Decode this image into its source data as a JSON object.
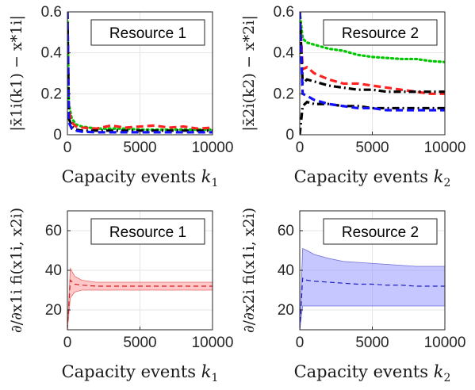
{
  "chart_data": [
    {
      "type": "line",
      "panel": "top-left",
      "legend": "Resource 1",
      "legend_placement": "top-right",
      "xlabel_text": "Capacity events ",
      "xlabel_sym": "k",
      "xlabel_sub": "1",
      "ylabel": "|x̄1i(k1) − x*1i|",
      "xlim": [
        0,
        10000
      ],
      "ylim": [
        0,
        0.6
      ],
      "xticks": [
        0,
        5000,
        10000
      ],
      "yticks": [
        0,
        0.2,
        0.4,
        0.6
      ],
      "xtick_labels": [
        "0",
        "5000",
        "10000"
      ],
      "ytick_labels": [
        "0",
        "0.2",
        "0.4",
        "0.6"
      ],
      "grid": true,
      "series": [
        {
          "color": "#00c800",
          "style": "dotted",
          "x": [
            0,
            100,
            300,
            600,
            1000,
            2000,
            3000,
            4000,
            5000,
            6000,
            7000,
            8000,
            9000,
            10000
          ],
          "y": [
            0.6,
            0.15,
            0.08,
            0.05,
            0.04,
            0.03,
            0.03,
            0.03,
            0.025,
            0.025,
            0.025,
            0.025,
            0.025,
            0.025
          ]
        },
        {
          "color": "#ff2020",
          "style": "dashed",
          "x": [
            0,
            100,
            300,
            600,
            1000,
            2000,
            3000,
            4000,
            5000,
            6000,
            7000,
            8000,
            9000,
            10000
          ],
          "y": [
            0.6,
            0.12,
            0.06,
            0.04,
            0.035,
            0.03,
            0.045,
            0.035,
            0.04,
            0.045,
            0.035,
            0.04,
            0.03,
            0.035
          ]
        },
        {
          "color": "#000000",
          "style": "dashdot",
          "x": [
            0,
            100,
            300,
            600,
            1000,
            2000,
            3000,
            4000,
            5000,
            6000,
            7000,
            8000,
            9000,
            10000
          ],
          "y": [
            0.6,
            0.08,
            0.04,
            0.025,
            0.02,
            0.02,
            0.02,
            0.02,
            0.02,
            0.02,
            0.02,
            0.02,
            0.02,
            0.02
          ]
        },
        {
          "color": "#1010ff",
          "style": "dashed",
          "x": [
            0,
            100,
            300,
            600,
            1000,
            2000,
            3000,
            4000,
            5000,
            6000,
            7000,
            8000,
            9000,
            10000
          ],
          "y": [
            0.6,
            0.06,
            0.03,
            0.02,
            0.015,
            0.012,
            0.012,
            0.012,
            0.012,
            0.012,
            0.012,
            0.012,
            0.012,
            0.012
          ]
        }
      ]
    },
    {
      "type": "line",
      "panel": "top-right",
      "legend": "Resource 2",
      "legend_placement": "top-right",
      "xlabel_text": "Capacity events ",
      "xlabel_sym": "k",
      "xlabel_sub": "2",
      "ylabel": "|x̄2i(k2) − x*2i|",
      "xlim": [
        0,
        10000
      ],
      "ylim": [
        0,
        0.6
      ],
      "xticks": [
        0,
        5000,
        10000
      ],
      "yticks": [
        0,
        0.2,
        0.4,
        0.6
      ],
      "xtick_labels": [
        "0",
        "5000",
        "10000"
      ],
      "ytick_labels": [
        "0",
        "0.2",
        "0.4",
        "0.6"
      ],
      "grid": true,
      "series": [
        {
          "color": "#00c800",
          "style": "dotted",
          "x": [
            0,
            200,
            500,
            1000,
            2000,
            3000,
            4000,
            5000,
            6000,
            7000,
            8000,
            9000,
            10000
          ],
          "y": [
            0.6,
            0.47,
            0.45,
            0.44,
            0.42,
            0.41,
            0.39,
            0.38,
            0.375,
            0.37,
            0.37,
            0.36,
            0.355
          ]
        },
        {
          "color": "#ff2020",
          "style": "dashed",
          "x": [
            0,
            200,
            500,
            1000,
            2000,
            3000,
            4000,
            5000,
            6000,
            7000,
            8000,
            9000,
            10000
          ],
          "y": [
            0.6,
            0.32,
            0.33,
            0.3,
            0.27,
            0.25,
            0.25,
            0.24,
            0.23,
            0.22,
            0.21,
            0.2,
            0.2
          ]
        },
        {
          "color": "#000000",
          "style": "dashdot",
          "x": [
            0,
            200,
            500,
            1000,
            2000,
            3000,
            4000,
            5000,
            6000,
            7000,
            8000,
            9000,
            10000
          ],
          "y": [
            0.6,
            0.25,
            0.27,
            0.26,
            0.24,
            0.23,
            0.22,
            0.22,
            0.21,
            0.21,
            0.21,
            0.21,
            0.21
          ]
        },
        {
          "color": "#000000",
          "style": "dashdot",
          "x": [
            0,
            200,
            500,
            1000,
            2000,
            3000,
            4000,
            5000,
            6000,
            7000,
            8000,
            9000,
            10000
          ],
          "y": [
            0.0,
            0.14,
            0.16,
            0.15,
            0.15,
            0.14,
            0.14,
            0.13,
            0.13,
            0.13,
            0.13,
            0.13,
            0.13
          ]
        },
        {
          "color": "#1010ff",
          "style": "dashed",
          "x": [
            0,
            200,
            500,
            1000,
            2000,
            3000,
            4000,
            5000,
            6000,
            7000,
            8000,
            9000,
            10000
          ],
          "y": [
            0.6,
            0.2,
            0.19,
            0.17,
            0.15,
            0.14,
            0.13,
            0.13,
            0.12,
            0.12,
            0.12,
            0.12,
            0.12
          ]
        }
      ]
    },
    {
      "type": "area",
      "panel": "bottom-left",
      "legend": "Resource 1",
      "legend_placement": "top-right",
      "xlabel_text": "Capacity events ",
      "xlabel_sym": "k",
      "xlabel_sub": "1",
      "ylabel": "∂/∂x1i fi(x1i, x2i)",
      "xlim": [
        0,
        10000
      ],
      "ylim": [
        10,
        70
      ],
      "xticks": [
        0,
        5000,
        10000
      ],
      "yticks": [
        20,
        40,
        60
      ],
      "xtick_labels": [
        "0",
        "5000",
        "10000"
      ],
      "ytick_labels": [
        "20",
        "40",
        "60"
      ],
      "grid": true,
      "fill_color": "#ff9999",
      "line_color": "#d02020",
      "x": [
        0,
        200,
        500,
        1000,
        2000,
        3000,
        4000,
        5000,
        6000,
        7000,
        8000,
        9000,
        10000
      ],
      "upper": [
        10,
        41,
        37,
        35,
        34,
        34,
        34,
        34,
        34,
        34,
        34,
        34,
        34
      ],
      "mean": [
        10,
        35,
        33,
        32.5,
        32,
        32,
        32,
        32,
        32,
        32,
        32,
        32,
        32
      ],
      "lower": [
        10,
        26,
        29,
        30,
        30,
        30,
        30,
        30,
        30,
        30,
        30,
        30,
        30
      ]
    },
    {
      "type": "area",
      "panel": "bottom-right",
      "legend": "Resource 2",
      "legend_placement": "top-right",
      "xlabel_text": "Capacity events ",
      "xlabel_sym": "k",
      "xlabel_sub": "2",
      "ylabel": "∂/∂x2i fi(x1i, x2i)",
      "xlim": [
        0,
        10000
      ],
      "ylim": [
        10,
        70
      ],
      "xticks": [
        0,
        5000,
        10000
      ],
      "yticks": [
        20,
        40,
        60
      ],
      "xtick_labels": [
        "0",
        "5000",
        "10000"
      ],
      "ytick_labels": [
        "20",
        "40",
        "60"
      ],
      "grid": true,
      "fill_color": "#9999ff",
      "line_color": "#2020c0",
      "x": [
        0,
        200,
        500,
        1000,
        2000,
        3000,
        4000,
        5000,
        6000,
        7000,
        8000,
        9000,
        10000
      ],
      "upper": [
        10,
        51,
        50,
        48,
        46,
        44.5,
        44,
        43.5,
        43,
        42.5,
        42,
        42,
        42
      ],
      "mean": [
        10,
        36,
        35,
        34.5,
        34,
        33.5,
        33,
        33,
        32.5,
        32.5,
        32,
        32,
        32
      ],
      "lower": [
        10,
        22,
        22,
        22,
        22,
        22,
        22,
        22,
        22,
        22,
        22,
        22,
        22
      ]
    }
  ]
}
